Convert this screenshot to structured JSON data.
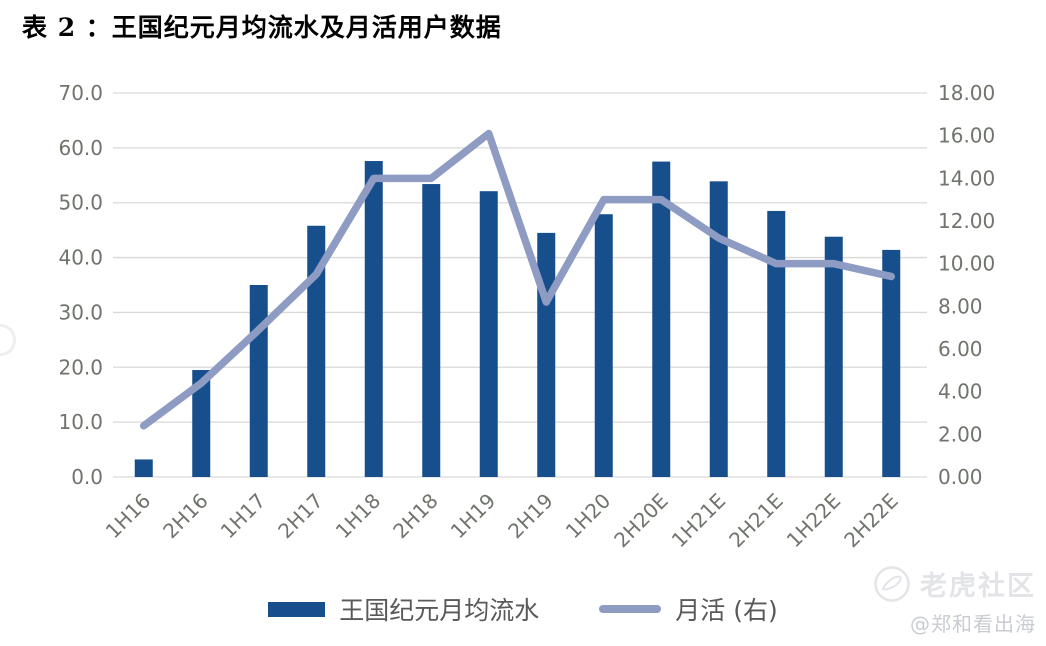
{
  "title": "表 2 ：王国纪元月均流水及月活用户数据",
  "chart_data": {
    "type": "combo-bar-line",
    "categories": [
      "1H16",
      "2H16",
      "1H17",
      "2H17",
      "1H18",
      "2H18",
      "1H19",
      "2H19",
      "1H20",
      "2H20E",
      "1H21E",
      "2H21E",
      "1H22E",
      "2H22E"
    ],
    "series": [
      {
        "name": "王国纪元月均流水",
        "type": "bar",
        "axis": "left",
        "color": "#174e8c",
        "values": [
          3.2,
          19.5,
          35.0,
          45.8,
          57.6,
          53.4,
          52.1,
          44.5,
          47.9,
          57.5,
          53.9,
          48.5,
          43.8,
          41.4
        ]
      },
      {
        "name": "月活 (右)",
        "type": "line",
        "axis": "right",
        "color": "#8e9cc3",
        "values": [
          2.4,
          4.4,
          6.9,
          9.5,
          14.0,
          14.0,
          16.1,
          8.2,
          13.0,
          13.0,
          11.2,
          10.0,
          10.0,
          9.4
        ]
      }
    ],
    "left_axis": {
      "min": 0,
      "max": 70,
      "step": 10,
      "tick_labels": [
        "0.0",
        "10.0",
        "20.0",
        "30.0",
        "40.0",
        "50.0",
        "60.0",
        "70.0"
      ]
    },
    "right_axis": {
      "min": 0,
      "max": 18,
      "step": 2,
      "tick_labels": [
        "0.00",
        "2.00",
        "4.00",
        "6.00",
        "8.00",
        "10.00",
        "12.00",
        "14.00",
        "16.00",
        "18.00"
      ]
    },
    "grid": true,
    "legend_position": "bottom"
  },
  "legend": {
    "bar_label": "王国纪元月均流水",
    "line_label": "月活 (右)"
  },
  "watermark": {
    "brand": "老虎社区",
    "handle": "@郑和看出海",
    "icon": "tiger-circle-icon"
  },
  "colors": {
    "bar": "#174e8c",
    "line": "#8e9cc3",
    "grid": "#d9d9d9",
    "axis_text": "#6f746c",
    "legend_text": "#595959",
    "title_text": "#000000",
    "watermark": "#e3e4e8",
    "handle": "#c9ccd2"
  }
}
